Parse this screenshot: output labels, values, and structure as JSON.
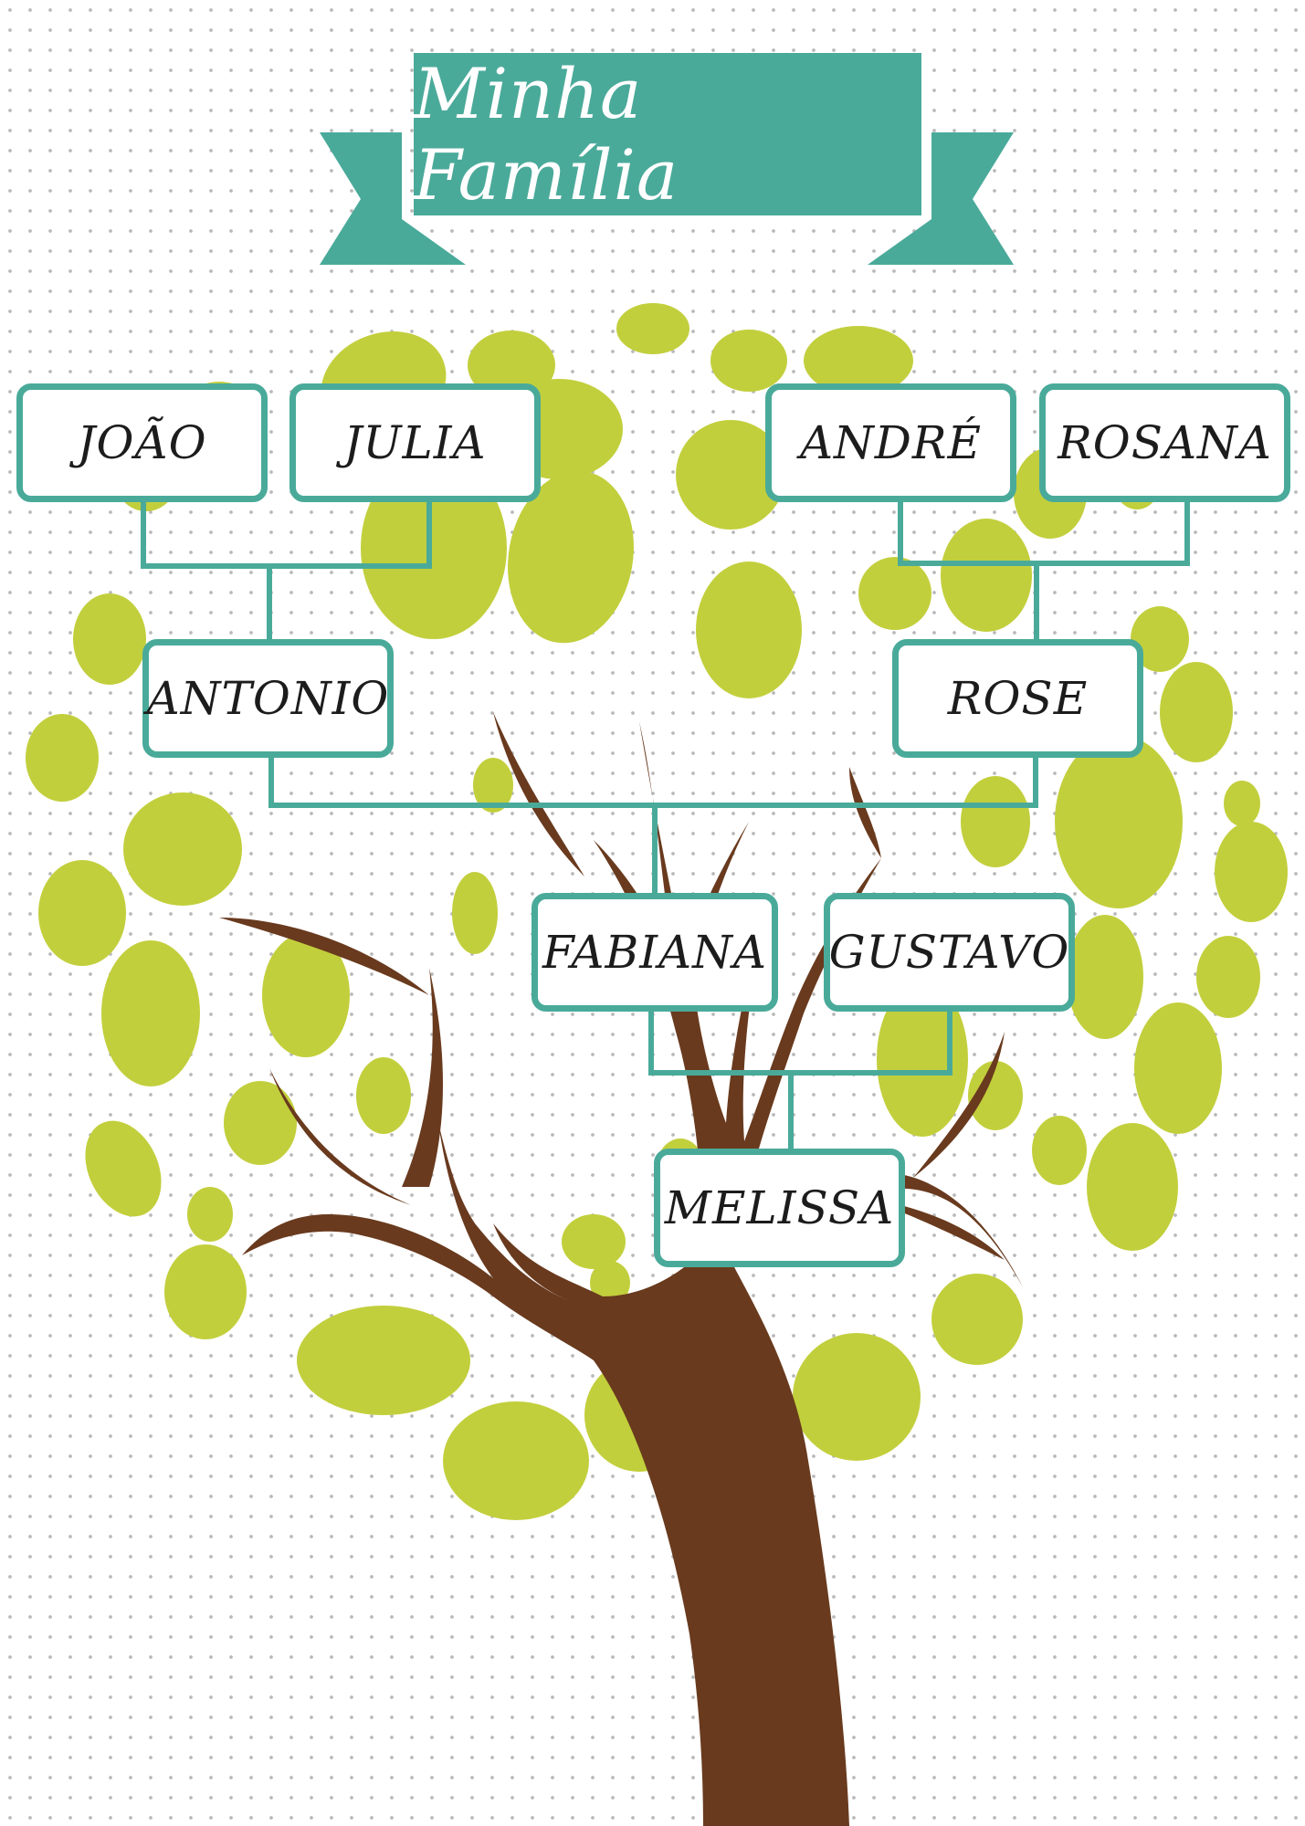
{
  "title": "Minha Família",
  "colors": {
    "accent": "#4aaa9a",
    "banner": "#4aaa9a",
    "foliage": "#c2cf3c",
    "trunk": "#693a1e",
    "box_border": "#4aaa9a",
    "text": "#1c1c1c"
  },
  "family": {
    "grandfather_paternal": "JOÃO",
    "grandmother_paternal": "JULIA",
    "grandfather_maternal": "ANDRÉ",
    "grandmother_maternal": "ROSANA",
    "father": "ANTONIO",
    "mother": "ROSE",
    "parent_1": "FABIANA",
    "parent_2": "GUSTAVO",
    "child": "MELISSA"
  }
}
